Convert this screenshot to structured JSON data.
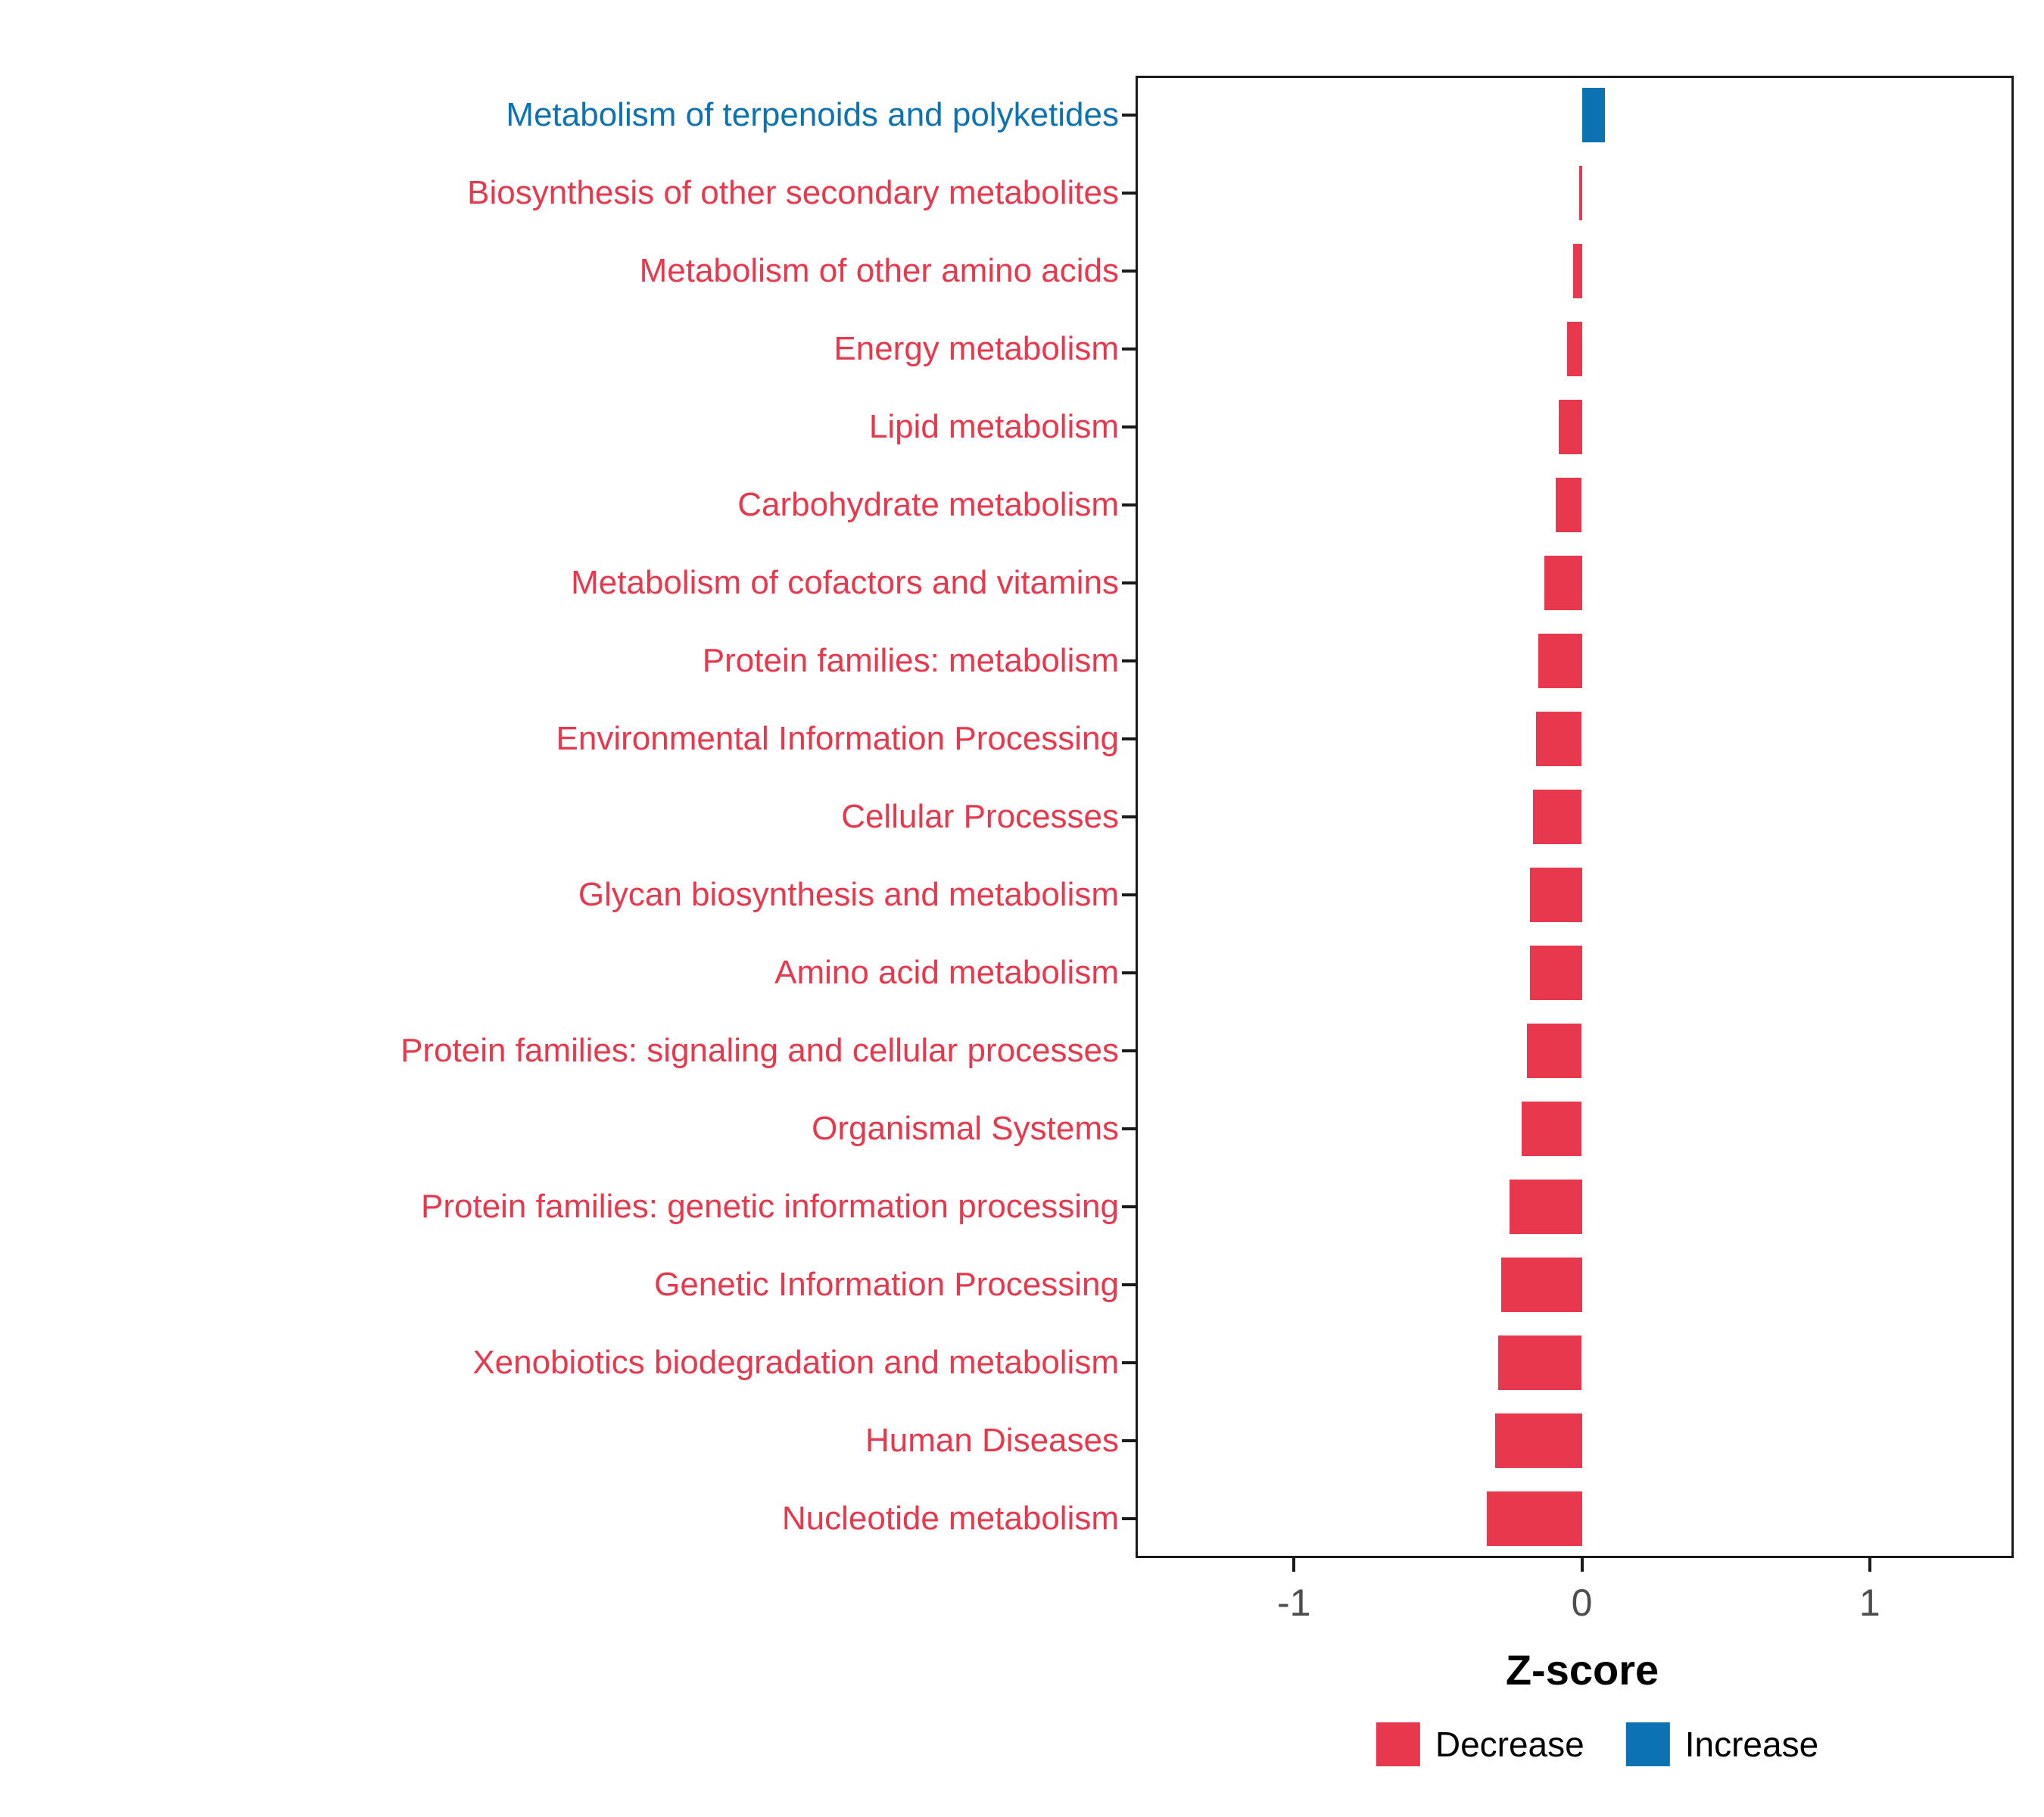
{
  "chart_data": {
    "type": "bar",
    "orientation": "horizontal",
    "title": "",
    "xlabel": "Z-score",
    "ylabel": "",
    "xlim": [
      -1.55,
      1.5
    ],
    "x_ticks": [
      "-1",
      "0",
      "1"
    ],
    "x_tick_values": [
      -1,
      0,
      1
    ],
    "grid": false,
    "legend_position": "bottom",
    "categories": [
      "Metabolism of terpenoids and polyketides",
      "Biosynthesis of other secondary metabolites",
      "Metabolism of other amino acids",
      "Energy metabolism",
      "Lipid metabolism",
      "Carbohydrate metabolism",
      "Metabolism of cofactors and vitamins",
      "Protein families: metabolism",
      "Environmental Information Processing",
      "Cellular Processes",
      "Glycan biosynthesis and metabolism",
      "Amino acid metabolism",
      "Protein families: signaling and cellular processes",
      "Organismal Systems",
      "Protein families: genetic information processing",
      "Genetic Information Processing",
      "Xenobiotics biodegradation and metabolism",
      "Human Diseases",
      "Nucleotide metabolism"
    ],
    "values": [
      0.08,
      -0.01,
      -0.03,
      -0.05,
      -0.08,
      -0.09,
      -0.13,
      -0.15,
      -0.16,
      -0.17,
      -0.18,
      -0.18,
      -0.19,
      -0.21,
      -0.25,
      -0.28,
      -0.29,
      -0.3,
      -0.33
    ],
    "directions": [
      "Increase",
      "Decrease",
      "Decrease",
      "Decrease",
      "Decrease",
      "Decrease",
      "Decrease",
      "Decrease",
      "Decrease",
      "Decrease",
      "Decrease",
      "Decrease",
      "Decrease",
      "Decrease",
      "Decrease",
      "Decrease",
      "Decrease",
      "Decrease",
      "Decrease"
    ],
    "legend": [
      {
        "label": "Decrease",
        "color": "#E8384D"
      },
      {
        "label": "Increase",
        "color": "#0D72B2"
      }
    ]
  },
  "colors": {
    "decrease": "#E8384D",
    "increase": "#0D72B2",
    "panel_border": "#1a1a1a",
    "tick_label": "#4d4d4d",
    "background": "#ffffff"
  }
}
